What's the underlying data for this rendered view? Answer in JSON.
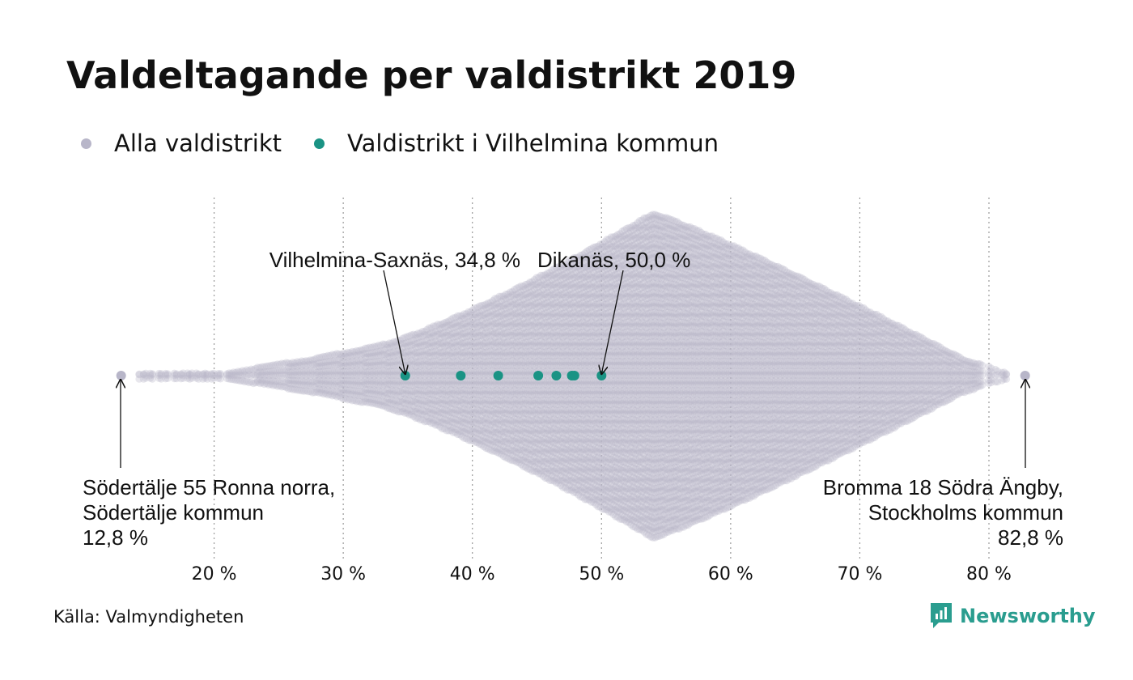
{
  "title": "Valdeltagande per valdistrikt 2019",
  "legend": [
    {
      "label": "Alla valdistrikt",
      "color": "#b8b6c9"
    },
    {
      "label": "Valdistrikt i Vilhelmina kommun",
      "color": "#1a9384"
    }
  ],
  "source": "Källa: Valmyndigheten",
  "brand": {
    "name": "Newsworthy",
    "icon": "newsworthy-logo-icon",
    "color": "#2a9d8f"
  },
  "chart_data": {
    "type": "scatter",
    "subtype": "beeswarm",
    "xlim": [
      13,
      83
    ],
    "x_ticks": [
      20,
      30,
      40,
      50,
      60,
      70,
      80
    ],
    "x_tick_labels": [
      "20 %",
      "30 %",
      "40 %",
      "50 %",
      "60 %",
      "70 %",
      "80 %"
    ],
    "grid": "vertical-dotted",
    "mode_value": 54,
    "series": [
      {
        "name": "Alla valdistrikt",
        "color": "#b8b6c9",
        "extremes": [
          12.8,
          82.8
        ]
      },
      {
        "name": "Valdistrikt i Vilhelmina kommun",
        "color": "#1a9384",
        "values": [
          34.8,
          39.1,
          42.0,
          45.1,
          46.5,
          47.7,
          47.9,
          50.0
        ]
      }
    ],
    "annotations": [
      {
        "id": "vilhelmina-saxnas",
        "value": 34.8,
        "lines": [
          "Vilhelmina-Saxnäs, 34,8 %"
        ]
      },
      {
        "id": "dikanas",
        "value": 50.0,
        "lines": [
          "Dikanäs, 50,0 %"
        ]
      },
      {
        "id": "sodertalje",
        "value": 12.8,
        "lines": [
          "Södertälje 55 Ronna norra,",
          "Södertälje kommun",
          "12,8 %"
        ]
      },
      {
        "id": "bromma",
        "value": 82.8,
        "lines": [
          "Bromma 18 Södra Ängby,",
          "Stockholms kommun",
          "82,8 %"
        ]
      }
    ]
  }
}
